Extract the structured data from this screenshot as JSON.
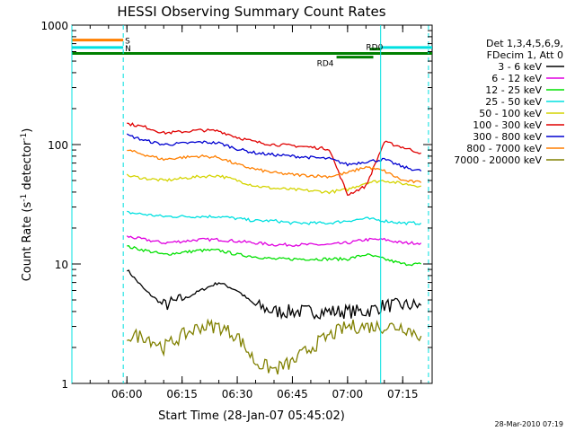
{
  "chart_data": {
    "type": "line",
    "title": "HESSI Observing Summary Count Rates",
    "xlabel": "Start Time (28-Jan-07 05:45:02)",
    "ylabel_main": "Count Rate (s",
    "ylabel_sup1": "-1",
    "ylabel_mid": " detector",
    "ylabel_sup2": "-1",
    "ylabel_end": ")",
    "y_scale": "log",
    "ylim": [
      1,
      1000
    ],
    "xlim": [
      "05:45:02",
      "07:23"
    ],
    "x_ticks": [
      "06:00",
      "06:15",
      "06:30",
      "06:45",
      "07:00",
      "07:15"
    ],
    "y_ticks": [
      "1",
      "10",
      "100",
      "1000"
    ],
    "legend_header": [
      "Det 1,3,4,5,6,9,",
      "FDecim 1, Att 0"
    ],
    "legend_placement": "right",
    "series": [
      {
        "name": "3 - 6 keV",
        "color": "#000000",
        "x": [
          "06:00",
          "06:05",
          "06:10",
          "06:15",
          "06:20",
          "06:25",
          "06:30",
          "06:35",
          "06:40",
          "06:45",
          "06:50",
          "06:55",
          "07:00",
          "07:05",
          "07:10",
          "07:15",
          "07:20"
        ],
        "values": [
          9,
          6,
          4.5,
          5,
          6,
          7,
          6,
          4.5,
          4,
          4,
          4,
          4,
          4,
          4,
          4.5,
          4.5,
          4.5
        ]
      },
      {
        "name": "6 - 12 keV",
        "color": "#e000e0",
        "x": [
          "06:00",
          "06:05",
          "06:10",
          "06:15",
          "06:20",
          "06:25",
          "06:30",
          "06:35",
          "06:40",
          "06:45",
          "06:50",
          "06:55",
          "07:00",
          "07:05",
          "07:10",
          "07:15",
          "07:20"
        ],
        "values": [
          17,
          16,
          15,
          15.5,
          16,
          16,
          15.5,
          15,
          14.5,
          14.5,
          14.5,
          14.5,
          15,
          16,
          16,
          15,
          15
        ]
      },
      {
        "name": "12 - 25 keV",
        "color": "#00e000",
        "x": [
          "06:00",
          "06:05",
          "06:10",
          "06:15",
          "06:20",
          "06:25",
          "06:30",
          "06:35",
          "06:40",
          "06:45",
          "06:50",
          "06:55",
          "07:00",
          "07:05",
          "07:10",
          "07:15",
          "07:20"
        ],
        "values": [
          14,
          13,
          12,
          12.5,
          13,
          13,
          12,
          11.5,
          11,
          11,
          11,
          11,
          11,
          12,
          11,
          10,
          10
        ]
      },
      {
        "name": "25 - 50 keV",
        "color": "#00e0e0",
        "x": [
          "06:00",
          "06:05",
          "06:10",
          "06:15",
          "06:20",
          "06:25",
          "06:30",
          "06:35",
          "06:40",
          "06:45",
          "06:50",
          "06:55",
          "07:00",
          "07:05",
          "07:10",
          "07:15",
          "07:20"
        ],
        "values": [
          27,
          26,
          25,
          25,
          25,
          25,
          24,
          23,
          23,
          22,
          22,
          22,
          23,
          24,
          23,
          22,
          22
        ]
      },
      {
        "name": "50 - 100 keV",
        "color": "#d4d400",
        "x": [
          "06:00",
          "06:05",
          "06:10",
          "06:15",
          "06:20",
          "06:25",
          "06:30",
          "06:35",
          "06:40",
          "06:45",
          "06:50",
          "06:55",
          "07:00",
          "07:05",
          "07:10",
          "07:15",
          "07:20"
        ],
        "values": [
          55,
          52,
          50,
          52,
          54,
          55,
          50,
          45,
          43,
          42,
          41,
          40,
          42,
          48,
          50,
          47,
          45
        ]
      },
      {
        "name": "100 - 300 keV",
        "color": "#e00000",
        "x": [
          "06:00",
          "06:05",
          "06:10",
          "06:15",
          "06:20",
          "06:25",
          "06:30",
          "06:35",
          "06:40",
          "06:45",
          "06:50",
          "06:55",
          "07:00",
          "07:05",
          "07:10",
          "07:15",
          "07:20"
        ],
        "values": [
          150,
          140,
          125,
          128,
          132,
          130,
          115,
          105,
          100,
          98,
          95,
          92,
          38,
          45,
          105,
          95,
          85
        ]
      },
      {
        "name": "300 - 800 keV",
        "color": "#0000d0",
        "x": [
          "06:00",
          "06:05",
          "06:10",
          "06:15",
          "06:20",
          "06:25",
          "06:30",
          "06:35",
          "06:40",
          "06:45",
          "06:50",
          "06:55",
          "07:00",
          "07:05",
          "07:10",
          "07:15",
          "07:20"
        ],
        "values": [
          120,
          108,
          100,
          102,
          105,
          103,
          92,
          85,
          82,
          80,
          78,
          76,
          68,
          72,
          75,
          65,
          60
        ]
      },
      {
        "name": "800 - 7000 keV",
        "color": "#ff7f00",
        "x": [
          "06:00",
          "06:05",
          "06:10",
          "06:15",
          "06:20",
          "06:25",
          "06:30",
          "06:35",
          "06:40",
          "06:45",
          "06:50",
          "06:55",
          "07:00",
          "07:05",
          "07:10",
          "07:15",
          "07:20"
        ],
        "values": [
          90,
          82,
          75,
          78,
          80,
          78,
          68,
          62,
          58,
          56,
          55,
          54,
          58,
          65,
          60,
          50,
          48
        ]
      },
      {
        "name": "7000 - 20000 keV",
        "color": "#808000",
        "x": [
          "06:00",
          "06:05",
          "06:10",
          "06:15",
          "06:20",
          "06:25",
          "06:30",
          "06:35",
          "06:40",
          "06:45",
          "06:50",
          "06:55",
          "07:00",
          "07:05",
          "07:10",
          "07:15",
          "07:20"
        ],
        "values": [
          2.5,
          2.5,
          2,
          2.5,
          3,
          3,
          2.5,
          1.5,
          1.3,
          1.5,
          2,
          2.5,
          3,
          3,
          3,
          3,
          2.5
        ]
      }
    ],
    "flag_bars": [
      {
        "label": "S",
        "color": "#ff7f00",
        "y": 750,
        "x": [
          "05:45:02",
          "05:59"
        ]
      },
      {
        "label": "N",
        "color": "#00e0e0",
        "y": 650,
        "x": [
          "05:45:02",
          "05:59"
        ],
        "x2": [
          "07:09",
          "07:23"
        ]
      },
      {
        "label": "",
        "color": "#008000",
        "y": 580,
        "x": [
          "05:45:02",
          "07:23"
        ]
      },
      {
        "label": "RD0",
        "color": "#008000",
        "y": 630,
        "x": [
          "07:06",
          "07:09"
        ]
      },
      {
        "label": "RD4",
        "color": "#008000",
        "y": 540,
        "x": [
          "06:57",
          "07:07"
        ]
      }
    ],
    "vertical_markers": [
      {
        "x": "05:45:02",
        "style": "solid",
        "color": "#00e0e0"
      },
      {
        "x": "05:59",
        "style": "dashed",
        "color": "#00e0e0"
      },
      {
        "x": "07:09",
        "style": "solid",
        "color": "#00e0e0"
      },
      {
        "x": "07:22",
        "style": "dashed",
        "color": "#00e0e0"
      }
    ],
    "footer_date": "28-Mar-2010 07:19"
  }
}
